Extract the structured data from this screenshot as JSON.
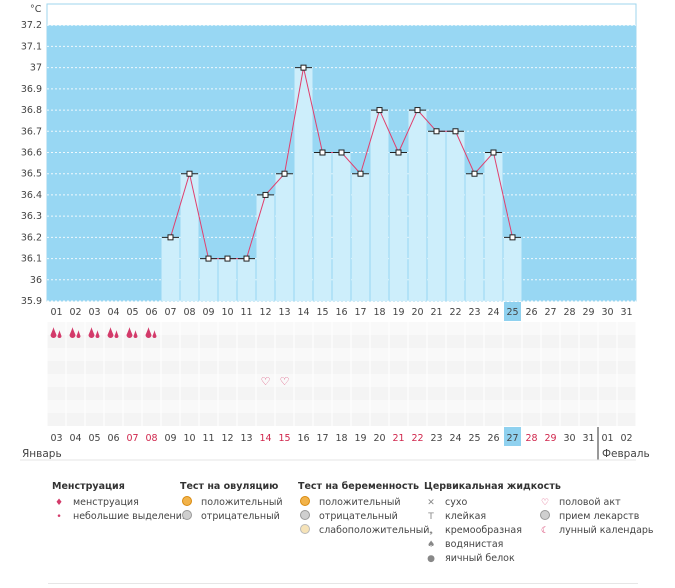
{
  "chart_data": {
    "type": "bar",
    "ylabel": "°C",
    "ylim": [
      35.9,
      37.3
    ],
    "yticks": [
      "35.9",
      "36",
      "36.1",
      "36.2",
      "36.3",
      "36.4",
      "36.5",
      "36.6",
      "36.7",
      "36.8",
      "36.9",
      "37",
      "37.1",
      "37.2"
    ],
    "cycle_days": [
      "01",
      "02",
      "03",
      "04",
      "05",
      "06",
      "07",
      "08",
      "09",
      "10",
      "11",
      "12",
      "13",
      "14",
      "15",
      "16",
      "17",
      "18",
      "19",
      "20",
      "21",
      "22",
      "23",
      "24",
      "25",
      "26",
      "27",
      "28",
      "29",
      "30",
      "31"
    ],
    "temperatures": [
      null,
      null,
      null,
      null,
      null,
      null,
      36.2,
      36.5,
      36.1,
      36.1,
      36.1,
      36.4,
      36.5,
      37.0,
      36.6,
      36.6,
      36.5,
      36.8,
      36.6,
      36.8,
      36.7,
      36.7,
      36.5,
      36.6,
      36.2,
      null,
      null,
      null,
      null,
      null,
      null
    ],
    "highlighted_day_index": 24,
    "menstruation_days": [
      0,
      1,
      2,
      3,
      4,
      5
    ],
    "intercourse_days": [
      11,
      12
    ],
    "dates": [
      "03",
      "04",
      "05",
      "06",
      "07",
      "08",
      "09",
      "10",
      "11",
      "12",
      "13",
      "14",
      "15",
      "16",
      "17",
      "18",
      "19",
      "20",
      "21",
      "22",
      "23",
      "24",
      "25",
      "26",
      "27",
      "28",
      "29",
      "30",
      "31",
      "01",
      "02"
    ],
    "red_date_indices": [
      4,
      5,
      11,
      12,
      18,
      19,
      25,
      26
    ],
    "month_left": "Январь",
    "month_right": "Февраль",
    "colors": {
      "plot_bg": "#98d7f3",
      "bar_fill": "#cdeefb",
      "line": "#e0406e",
      "highlight": "#8fd1ef",
      "red": "#d0264c"
    }
  },
  "legend": {
    "menstruation": {
      "title": "Менструация",
      "items": [
        "менструация",
        "небольшие выделения"
      ]
    },
    "ovulation_test": {
      "title": "Тест на овуляцию",
      "items": [
        "положительный",
        "отрицательный"
      ]
    },
    "pregnancy_test": {
      "title": "Тест на беременность",
      "items": [
        "положительный",
        "отрицательный",
        "слабоположительный"
      ]
    },
    "cervical_fluid": {
      "title": "Цервикальная жидкость",
      "items": [
        "сухо",
        "клейкая",
        "кремообразная",
        "водянистая",
        "яичный белок"
      ]
    },
    "other": {
      "items": [
        "половой акт",
        "прием лекарств",
        "лунный календарь"
      ]
    }
  }
}
